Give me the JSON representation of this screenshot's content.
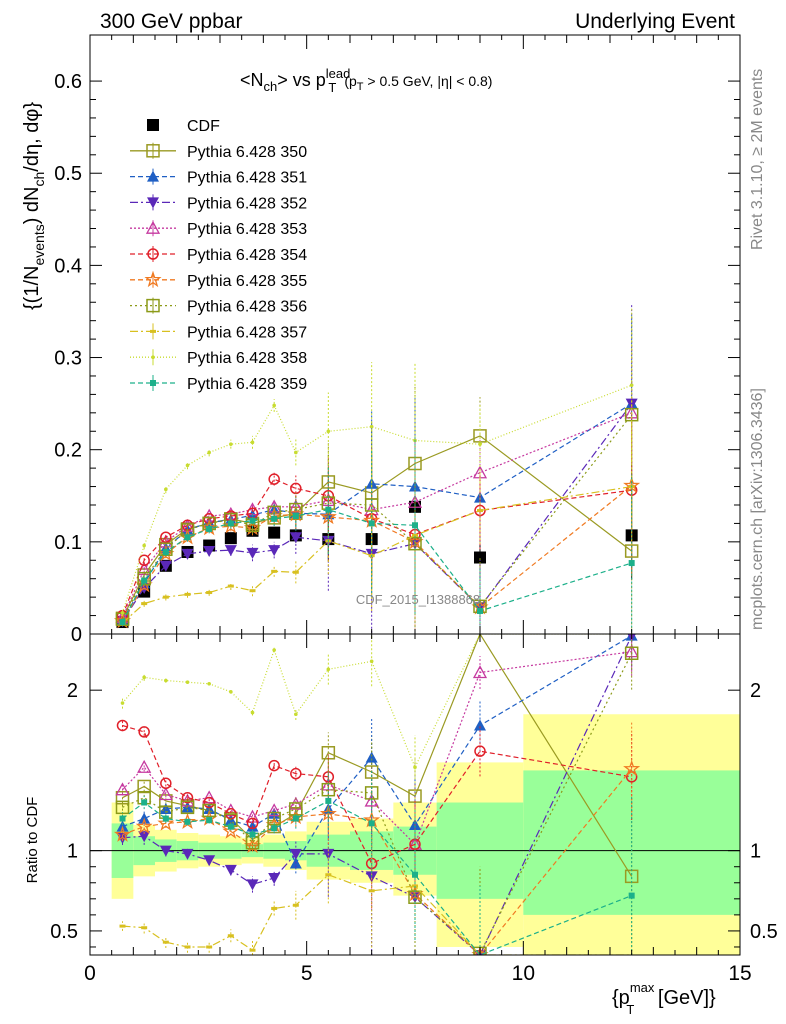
{
  "header": {
    "left": "300 GeV ppbar",
    "right": "Underlying Event"
  },
  "side_texts": {
    "rivet": "Rivet 3.1.10, ≥ 2M events",
    "mcplots": "mcplots.cern.ch [arXiv:1306.3436]"
  },
  "watermark": "CDF_2015_I1388868",
  "plot_title": {
    "main": "<N",
    "sub_ch": "ch",
    "mid": "> vs p",
    "sup": "lead",
    "sub_T": "T",
    "tail": "(p",
    "tail_sub": "T",
    "tail2": " > 0.5 GeV, |η| < 0.8)"
  },
  "y_axis_label": {
    "a": "{(1/N",
    "sub1": "events",
    "b": ") dN",
    "sub2": "ch",
    "c": "/dη, dφ}"
  },
  "ratio_label": "Ratio to CDF",
  "x_axis_label": {
    "a": "{p",
    "sup": "max",
    "sub": "T",
    "b": " [GeV]}"
  },
  "colors": {
    "cdf": "#000000",
    "p350": "#9a9a22",
    "p351": "#1f5fc4",
    "p352": "#5a28b8",
    "p353": "#c63aa0",
    "p354": "#e0202a",
    "p355": "#f07a22",
    "p356": "#8c9a18",
    "p357": "#d8c020",
    "p358": "#c8dc30",
    "p359": "#1cb08a",
    "band_outer": "#ffff99",
    "band_inner": "#99ff99"
  },
  "chart_data": {
    "type": "scatter",
    "x": [
      0.75,
      1.25,
      1.75,
      2.25,
      2.75,
      3.25,
      3.75,
      4.25,
      4.75,
      5.5,
      6.5,
      7.5,
      9.0,
      12.5
    ],
    "main_panel": {
      "xlim": [
        0,
        15
      ],
      "ylim": [
        0,
        0.65
      ],
      "yticks": [
        "0",
        "0.1",
        "0.2",
        "0.3",
        "0.4",
        "0.5",
        "0.6"
      ]
    },
    "ratio_panel": {
      "xlim": [
        0,
        15
      ],
      "ylim": [
        0.35,
        2.35
      ],
      "yticks": [
        "0.5",
        "1",
        "2"
      ]
    },
    "xticks": [
      "0",
      "5",
      "10",
      "15"
    ],
    "series": [
      {
        "name": "CDF",
        "key": "cdf",
        "marker": "square-filled",
        "dash": "none",
        "values": [
          0.013,
          0.046,
          0.074,
          0.089,
          0.096,
          0.104,
          0.112,
          0.11,
          0.107,
          0.103,
          0.103,
          0.138,
          0.083,
          0.107
        ],
        "ratio": [
          1,
          1,
          1,
          1,
          1,
          1,
          1,
          1,
          1,
          1,
          1,
          1,
          1,
          1
        ]
      },
      {
        "name": "Pythia 6.428 350",
        "key": "p350",
        "marker": "square-open",
        "dash": "solid",
        "values": [
          0.017,
          0.064,
          0.097,
          0.114,
          0.12,
          0.125,
          0.12,
          0.126,
          0.131,
          0.165,
          0.153,
          0.185,
          0.215,
          0.09
        ],
        "ratio": [
          1.33,
          1.4,
          1.31,
          1.28,
          1.25,
          1.2,
          1.07,
          1.15,
          1.23,
          1.61,
          1.49,
          1.34,
          2.59,
          0.84
        ]
      },
      {
        "name": "Pythia 6.428 351",
        "key": "p351",
        "marker": "triangle-up-filled",
        "dash": "5,3",
        "values": [
          0.015,
          0.055,
          0.093,
          0.113,
          0.121,
          0.124,
          0.129,
          0.135,
          0.131,
          0.13,
          0.163,
          0.16,
          0.148,
          0.25
        ],
        "ratio": [
          1.15,
          1.2,
          1.26,
          1.27,
          1.26,
          1.19,
          1.15,
          1.23,
          0.92,
          1.26,
          1.58,
          1.16,
          1.78,
          2.34
        ]
      },
      {
        "name": "Pythia 6.428 352",
        "key": "p352",
        "marker": "triangle-down-filled",
        "dash": "8,3,2,3",
        "values": [
          0.014,
          0.05,
          0.074,
          0.087,
          0.09,
          0.091,
          0.088,
          0.091,
          0.105,
          0.101,
          0.087,
          0.098,
          0.029,
          0.25
        ],
        "ratio": [
          1.08,
          1.09,
          1.0,
          0.98,
          0.94,
          0.88,
          0.79,
          0.83,
          0.98,
          0.98,
          0.84,
          0.71,
          0.35,
          2.34
        ]
      },
      {
        "name": "Pythia 6.428 353",
        "key": "p353",
        "marker": "triangle-up-open",
        "dash": "2,2",
        "values": [
          0.018,
          0.07,
          0.1,
          0.117,
          0.128,
          0.13,
          0.135,
          0.138,
          0.138,
          0.145,
          0.135,
          0.143,
          0.175,
          0.24
        ],
        "ratio": [
          1.38,
          1.52,
          1.35,
          1.31,
          1.33,
          1.25,
          1.21,
          1.25,
          1.29,
          1.41,
          1.31,
          1.04,
          2.11,
          2.24
        ]
      },
      {
        "name": "Pythia 6.428 354",
        "key": "p354",
        "marker": "circle-open",
        "dash": "5,3",
        "values": [
          0.02,
          0.08,
          0.105,
          0.118,
          0.125,
          0.128,
          0.131,
          0.168,
          0.158,
          0.15,
          0.125,
          0.108,
          0.134,
          0.156
        ],
        "ratio": [
          1.78,
          1.74,
          1.42,
          1.33,
          1.3,
          1.23,
          1.17,
          1.53,
          1.48,
          1.46,
          0.92,
          1.04,
          1.62,
          1.46
        ]
      },
      {
        "name": "Pythia 6.428 355",
        "key": "p355",
        "marker": "star-open",
        "dash": "5,3",
        "values": [
          0.014,
          0.053,
          0.087,
          0.105,
          0.115,
          0.117,
          0.115,
          0.128,
          0.13,
          0.127,
          0.123,
          0.1,
          0.029,
          0.161
        ],
        "ratio": [
          1.1,
          1.15,
          1.17,
          1.18,
          1.2,
          1.12,
          1.03,
          1.16,
          1.21,
          1.23,
          1.19,
          0.73,
          0.35,
          1.51
        ]
      },
      {
        "name": "Pythia 6.428 356",
        "key": "p356",
        "marker": "square-open",
        "dash": "2,3",
        "values": [
          0.016,
          0.06,
          0.092,
          0.113,
          0.12,
          0.124,
          0.118,
          0.132,
          0.135,
          0.142,
          0.14,
          0.098,
          0.03,
          0.238
        ],
        "ratio": [
          1.27,
          1.33,
          1.24,
          1.27,
          1.25,
          1.19,
          1.05,
          1.2,
          1.26,
          1.38,
          1.36,
          0.71,
          0.36,
          2.23
        ]
      },
      {
        "name": "Pythia 6.428 357",
        "key": "p357",
        "marker": "dash-small",
        "dash": "8,3,2,3",
        "values": [
          0.012,
          0.033,
          0.04,
          0.043,
          0.045,
          0.052,
          0.047,
          0.068,
          0.067,
          0.101,
          0.085,
          0.107,
          0.134,
          0.16
        ],
        "ratio": [
          0.53,
          0.52,
          0.43,
          0.4,
          0.4,
          0.47,
          0.38,
          0.64,
          0.66,
          0.85,
          0.75,
          0.78,
          0.3,
          0.3
        ]
      },
      {
        "name": "Pythia 6.428 358",
        "key": "p358",
        "marker": "dot-small",
        "dash": "1,2",
        "values": [
          0.023,
          0.096,
          0.157,
          0.183,
          0.197,
          0.206,
          0.208,
          0.248,
          0.197,
          0.22,
          0.225,
          0.21,
          0.206,
          0.27
        ],
        "ratio": [
          1.92,
          2.08,
          2.06,
          2.05,
          2.04,
          1.99,
          1.86,
          2.25,
          1.85,
          2.13,
          2.18,
          1.52,
          2.48,
          2.52
        ]
      },
      {
        "name": "Pythia 6.428 359",
        "key": "p359",
        "marker": "square-filled-small",
        "dash": "5,3",
        "values": [
          0.013,
          0.058,
          0.089,
          0.105,
          0.114,
          0.12,
          0.123,
          0.125,
          0.128,
          0.135,
          0.12,
          0.118,
          0.025,
          0.077
        ],
        "ratio": [
          1.2,
          1.3,
          1.2,
          1.18,
          1.19,
          1.15,
          1.1,
          1.14,
          1.2,
          1.31,
          1.17,
          0.85,
          0.3,
          0.72
        ]
      }
    ],
    "error_bars": [
      0.005,
      0.006,
      0.006,
      0.006,
      0.006,
      0.007,
      0.01,
      0.01,
      0.02,
      0.06,
      0.1,
      0.12,
      0.06,
      0.12
    ],
    "ratio_bands": {
      "edges": [
        0.5,
        1.0,
        1.5,
        2.0,
        2.5,
        3.0,
        3.5,
        4.0,
        4.5,
        5.0,
        6.0,
        7.0,
        8.0,
        10.0,
        15.0
      ],
      "outer_lo": [
        0.7,
        0.84,
        0.87,
        0.89,
        0.9,
        0.91,
        0.92,
        0.9,
        0.88,
        0.82,
        0.8,
        0.72,
        0.4,
        0.3
      ],
      "outer_hi": [
        1.3,
        1.16,
        1.13,
        1.11,
        1.1,
        1.09,
        1.08,
        1.1,
        1.12,
        1.18,
        1.2,
        1.3,
        1.55,
        1.85
      ],
      "inner_lo": [
        0.83,
        0.91,
        0.93,
        0.94,
        0.95,
        0.95,
        0.96,
        0.95,
        0.94,
        0.9,
        0.88,
        0.85,
        0.7,
        0.6
      ],
      "inner_hi": [
        1.17,
        1.09,
        1.07,
        1.06,
        1.05,
        1.05,
        1.04,
        1.05,
        1.06,
        1.1,
        1.12,
        1.15,
        1.3,
        1.5
      ]
    }
  }
}
